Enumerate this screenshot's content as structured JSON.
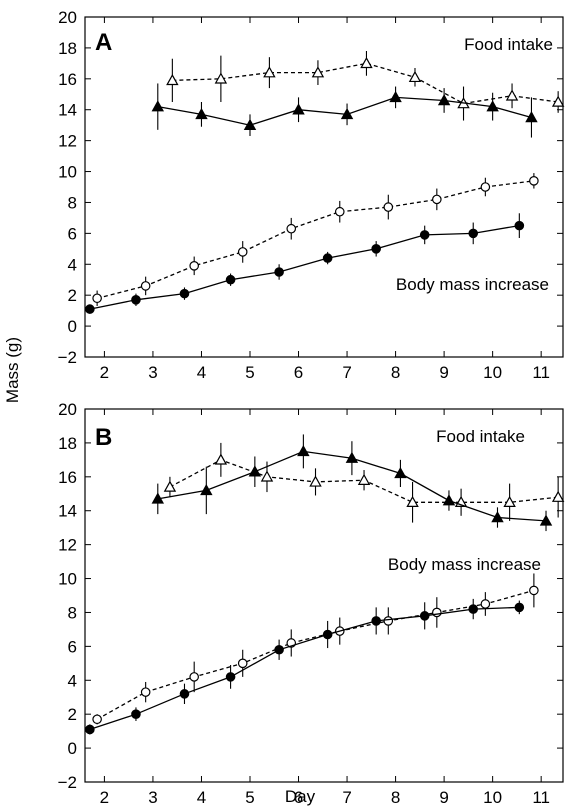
{
  "figure": {
    "ylabel": "Mass (g)",
    "xlabel": "Day"
  },
  "chart_data": [
    {
      "type": "line",
      "panel": "A",
      "xlim": [
        1.6,
        11.45
      ],
      "ylim": [
        -2,
        20
      ],
      "x_ticks": [
        2,
        3,
        4,
        5,
        6,
        7,
        8,
        9,
        10,
        11
      ],
      "y_ticks": [
        -2,
        0,
        2,
        4,
        6,
        8,
        10,
        12,
        14,
        16,
        18,
        20
      ],
      "annotations": {
        "food": "Food intake",
        "body": "Body mass increase"
      },
      "series": [
        {
          "marker": "triangle-open",
          "line": "dashed",
          "points": [
            {
              "x": 3.4,
              "y": 15.9,
              "err": 1.4
            },
            {
              "x": 4.4,
              "y": 16.0,
              "err": 1.5
            },
            {
              "x": 5.4,
              "y": 16.4,
              "err": 1.0
            },
            {
              "x": 6.4,
              "y": 16.4,
              "err": 0.8
            },
            {
              "x": 7.4,
              "y": 17.0,
              "err": 0.8
            },
            {
              "x": 8.4,
              "y": 16.1,
              "err": 0.6
            },
            {
              "x": 9.4,
              "y": 14.4,
              "err": 1.1
            },
            {
              "x": 10.4,
              "y": 14.9,
              "err": 0.8
            },
            {
              "x": 11.35,
              "y": 14.5,
              "err": 0.7
            }
          ]
        },
        {
          "marker": "triangle-filled",
          "line": "solid",
          "points": [
            {
              "x": 3.1,
              "y": 14.2,
              "err": 1.5
            },
            {
              "x": 4.0,
              "y": 13.7,
              "err": 0.8
            },
            {
              "x": 5.0,
              "y": 13.0,
              "err": 0.7
            },
            {
              "x": 6.0,
              "y": 14.0,
              "err": 0.8
            },
            {
              "x": 7.0,
              "y": 13.7,
              "err": 0.7
            },
            {
              "x": 8.0,
              "y": 14.8,
              "err": 0.7
            },
            {
              "x": 9.0,
              "y": 14.6,
              "err": 0.8
            },
            {
              "x": 10.0,
              "y": 14.2,
              "err": 0.9
            },
            {
              "x": 10.8,
              "y": 13.5,
              "err": 1.3
            }
          ]
        },
        {
          "marker": "circle-open",
          "line": "dashed",
          "points": [
            {
              "x": 1.85,
              "y": 1.8,
              "err": 0.5
            },
            {
              "x": 2.85,
              "y": 2.6,
              "err": 0.6
            },
            {
              "x": 3.85,
              "y": 3.9,
              "err": 0.6
            },
            {
              "x": 4.85,
              "y": 4.8,
              "err": 0.7
            },
            {
              "x": 5.85,
              "y": 6.3,
              "err": 0.7
            },
            {
              "x": 6.85,
              "y": 7.4,
              "err": 0.7
            },
            {
              "x": 7.85,
              "y": 7.7,
              "err": 0.8
            },
            {
              "x": 8.85,
              "y": 8.2,
              "err": 0.7
            },
            {
              "x": 9.85,
              "y": 9.0,
              "err": 0.6
            },
            {
              "x": 10.85,
              "y": 9.4,
              "err": 0.5
            }
          ]
        },
        {
          "marker": "circle-filled",
          "line": "solid",
          "points": [
            {
              "x": 1.7,
              "y": 1.1,
              "err": 0.3
            },
            {
              "x": 2.65,
              "y": 1.7,
              "err": 0.4
            },
            {
              "x": 3.65,
              "y": 2.1,
              "err": 0.4
            },
            {
              "x": 4.6,
              "y": 3.0,
              "err": 0.4
            },
            {
              "x": 5.6,
              "y": 3.5,
              "err": 0.5
            },
            {
              "x": 6.6,
              "y": 4.4,
              "err": 0.4
            },
            {
              "x": 7.6,
              "y": 5.0,
              "err": 0.5
            },
            {
              "x": 8.6,
              "y": 5.9,
              "err": 0.6
            },
            {
              "x": 9.6,
              "y": 6.0,
              "err": 0.7
            },
            {
              "x": 10.55,
              "y": 6.5,
              "err": 0.8
            }
          ]
        }
      ]
    },
    {
      "type": "line",
      "panel": "B",
      "xlim": [
        1.6,
        11.45
      ],
      "ylim": [
        -2,
        20
      ],
      "x_ticks": [
        2,
        3,
        4,
        5,
        6,
        7,
        8,
        9,
        10,
        11
      ],
      "y_ticks": [
        -2,
        0,
        2,
        4,
        6,
        8,
        10,
        12,
        14,
        16,
        18,
        20
      ],
      "annotations": {
        "food": "Food intake",
        "body": "Body mass increase"
      },
      "series": [
        {
          "marker": "triangle-open",
          "line": "dashed",
          "points": [
            {
              "x": 3.35,
              "y": 15.4,
              "err": 0.6
            },
            {
              "x": 4.4,
              "y": 17.0,
              "err": 1.0
            },
            {
              "x": 5.35,
              "y": 16.0,
              "err": 0.9
            },
            {
              "x": 6.35,
              "y": 15.7,
              "err": 0.8
            },
            {
              "x": 7.35,
              "y": 15.8,
              "err": 0.6
            },
            {
              "x": 8.35,
              "y": 14.5,
              "err": 1.2
            },
            {
              "x": 9.35,
              "y": 14.5,
              "err": 0.8
            },
            {
              "x": 10.35,
              "y": 14.5,
              "err": 1.1
            },
            {
              "x": 11.35,
              "y": 14.8,
              "err": 1.2
            }
          ]
        },
        {
          "marker": "triangle-filled",
          "line": "solid",
          "points": [
            {
              "x": 3.1,
              "y": 14.7,
              "err": 0.9
            },
            {
              "x": 4.1,
              "y": 15.2,
              "err": 1.4
            },
            {
              "x": 5.1,
              "y": 16.3,
              "err": 0.9
            },
            {
              "x": 6.1,
              "y": 17.5,
              "err": 1.0
            },
            {
              "x": 7.1,
              "y": 17.1,
              "err": 1.0
            },
            {
              "x": 8.1,
              "y": 16.2,
              "err": 0.8
            },
            {
              "x": 9.1,
              "y": 14.6,
              "err": 0.6
            },
            {
              "x": 10.1,
              "y": 13.6,
              "err": 0.6
            },
            {
              "x": 11.1,
              "y": 13.4,
              "err": 0.6
            }
          ]
        },
        {
          "marker": "circle-open",
          "line": "dashed",
          "points": [
            {
              "x": 1.85,
              "y": 1.7,
              "err": 0.3
            },
            {
              "x": 2.85,
              "y": 3.3,
              "err": 0.6
            },
            {
              "x": 3.85,
              "y": 4.2,
              "err": 0.9
            },
            {
              "x": 4.85,
              "y": 5.0,
              "err": 0.8
            },
            {
              "x": 5.85,
              "y": 6.2,
              "err": 0.8
            },
            {
              "x": 6.85,
              "y": 6.9,
              "err": 0.8
            },
            {
              "x": 7.85,
              "y": 7.5,
              "err": 0.8
            },
            {
              "x": 8.85,
              "y": 8.0,
              "err": 0.9
            },
            {
              "x": 9.85,
              "y": 8.5,
              "err": 0.7
            },
            {
              "x": 10.85,
              "y": 9.3,
              "err": 1.0
            }
          ]
        },
        {
          "marker": "circle-filled",
          "line": "solid",
          "points": [
            {
              "x": 1.7,
              "y": 1.1,
              "err": 0.3
            },
            {
              "x": 2.65,
              "y": 2.0,
              "err": 0.4
            },
            {
              "x": 3.65,
              "y": 3.2,
              "err": 0.6
            },
            {
              "x": 4.6,
              "y": 4.2,
              "err": 0.7
            },
            {
              "x": 5.6,
              "y": 5.8,
              "err": 0.6
            },
            {
              "x": 6.6,
              "y": 6.7,
              "err": 0.8
            },
            {
              "x": 7.6,
              "y": 7.5,
              "err": 0.8
            },
            {
              "x": 8.6,
              "y": 7.8,
              "err": 0.8
            },
            {
              "x": 9.6,
              "y": 8.2,
              "err": 0.6
            },
            {
              "x": 10.55,
              "y": 8.3,
              "err": 0.4
            }
          ]
        }
      ]
    }
  ]
}
